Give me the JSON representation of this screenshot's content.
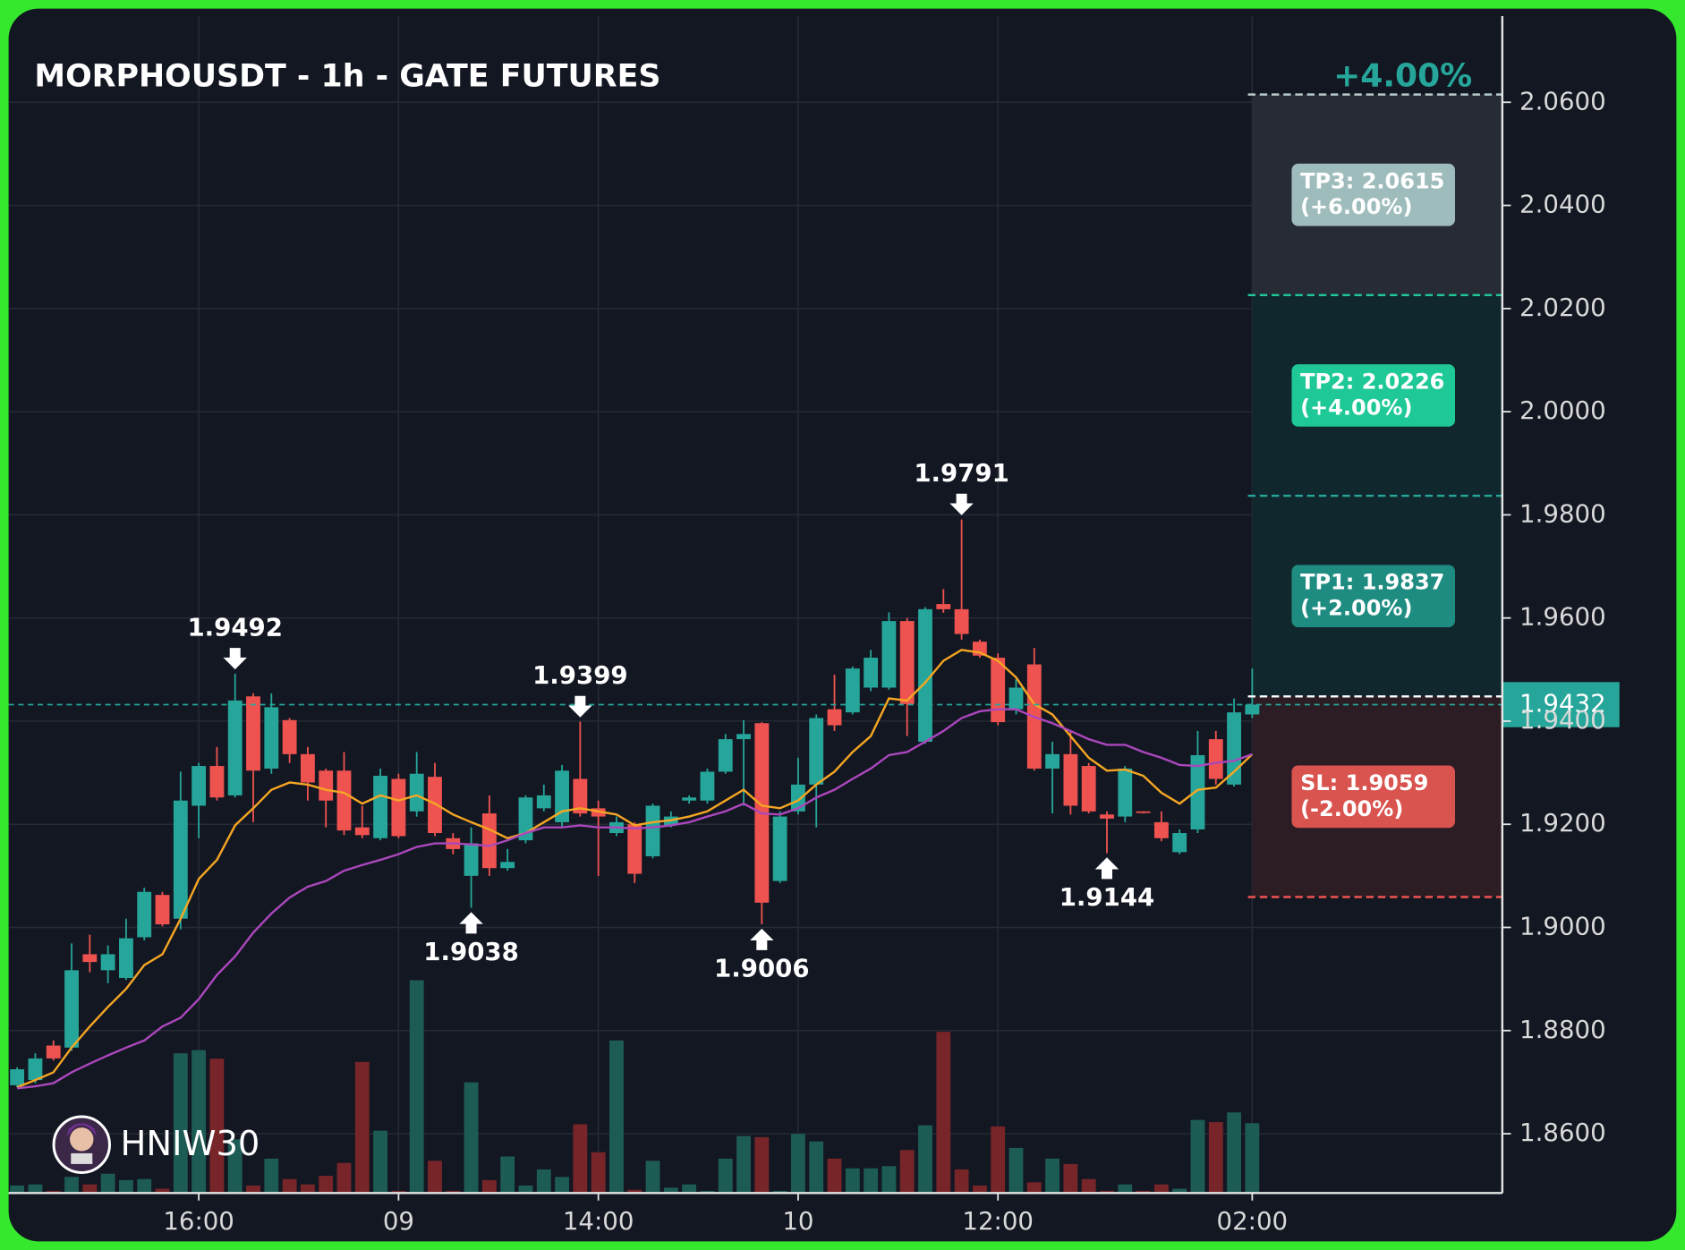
{
  "chart_data": {
    "type": "candlestick",
    "title": "MORPHOUSDT - 1h - GATE FUTURES",
    "badge": "+4.00%",
    "watermark": "HNIW30",
    "xlim": [
      -0.47,
      81.77
    ],
    "ylim": [
      1.8485,
      2.0767
    ],
    "xticks": [
      {
        "value": 10,
        "label": "16:00"
      },
      {
        "value": 21,
        "label": "09"
      },
      {
        "value": 32,
        "label": "14:00"
      },
      {
        "value": 43,
        "label": "10"
      },
      {
        "value": 54,
        "label": "12:00"
      },
      {
        "value": 68,
        "label": "02:00"
      }
    ],
    "yticks": [
      {
        "value": 1.86,
        "label": "1.8600"
      },
      {
        "value": 1.88,
        "label": "1.8800"
      },
      {
        "value": 1.9,
        "label": "1.9000"
      },
      {
        "value": 1.92,
        "label": "1.9200"
      },
      {
        "value": 1.94,
        "label": "1.9400"
      },
      {
        "value": 1.96,
        "label": "1.9600"
      },
      {
        "value": 1.98,
        "label": "1.9800"
      },
      {
        "value": 2.0,
        "label": "2.0000"
      },
      {
        "value": 2.02,
        "label": "2.0200"
      },
      {
        "value": 2.04,
        "label": "2.0400"
      },
      {
        "value": 2.06,
        "label": "2.0600"
      }
    ],
    "grid": true,
    "up_color": "#26a69a",
    "down_color": "#ef5350",
    "volume_up_color": "#1d5c55",
    "volume_down_color": "#772528",
    "open": [
      1.8694,
      1.8704,
      1.8771,
      1.8767,
      1.8948,
      1.8917,
      1.8902,
      1.8981,
      1.9063,
      1.9017,
      1.9236,
      1.9313,
      1.9256,
      1.9448,
      1.9308,
      1.9402,
      1.9336,
      1.9304,
      1.9304,
      1.9194,
      1.9173,
      1.9288,
      1.9225,
      1.9292,
      1.9173,
      1.91,
      1.9221,
      1.9115,
      1.9169,
      1.9231,
      1.9204,
      1.9288,
      1.9231,
      1.9183,
      1.92,
      1.9138,
      1.9198,
      1.9246,
      1.9246,
      1.9302,
      1.9365,
      1.9396,
      1.909,
      1.9225,
      1.9277,
      1.9423,
      1.9417,
      1.9465,
      1.9465,
      1.9594,
      1.936,
      1.9627,
      1.9617,
      1.9554,
      1.9523,
      1.9423,
      1.951,
      1.9308,
      1.9336,
      1.9313,
      1.9219,
      1.9215,
      1.9225,
      1.9204,
      1.9146,
      1.919,
      1.9365,
      1.9277,
      1.9413
    ],
    "high": [
      1.8729,
      1.8756,
      1.8781,
      1.8969,
      1.8986,
      1.8965,
      1.9017,
      1.9077,
      1.9069,
      1.9302,
      1.9319,
      1.935,
      1.9492,
      1.9454,
      1.9454,
      1.9406,
      1.935,
      1.9308,
      1.934,
      1.9236,
      1.9308,
      1.9298,
      1.934,
      1.9319,
      1.9183,
      1.9194,
      1.9256,
      1.9152,
      1.9256,
      1.9277,
      1.9315,
      1.9399,
      1.9246,
      1.9215,
      1.9204,
      1.924,
      1.9225,
      1.9256,
      1.9308,
      1.9375,
      1.9402,
      1.9398,
      1.9225,
      1.9329,
      1.9413,
      1.949,
      1.9506,
      1.9538,
      1.9611,
      1.96,
      1.9621,
      1.9656,
      1.9791,
      1.9558,
      1.9531,
      1.9481,
      1.9542,
      1.936,
      1.9381,
      1.9319,
      1.9225,
      1.9313,
      1.9225,
      1.9225,
      1.919,
      1.9381,
      1.9381,
      1.9444,
      1.9502
    ],
    "low": [
      1.869,
      1.8698,
      1.8742,
      1.8761,
      1.8913,
      1.8892,
      1.8898,
      1.8975,
      1.9002,
      1.8996,
      1.9173,
      1.9246,
      1.9252,
      1.9204,
      1.9298,
      1.9319,
      1.9246,
      1.9194,
      1.9179,
      1.9173,
      1.9169,
      1.9173,
      1.9215,
      1.9177,
      1.9142,
      1.9038,
      1.91,
      1.911,
      1.9163,
      1.9225,
      1.9194,
      1.9215,
      1.91,
      1.9177,
      1.9086,
      1.9134,
      1.9194,
      1.924,
      1.924,
      1.9298,
      1.9236,
      1.9006,
      1.9086,
      1.9219,
      1.9194,
      1.9381,
      1.9413,
      1.9458,
      1.9461,
      1.9371,
      1.9356,
      1.961,
      1.9558,
      1.9523,
      1.9392,
      1.9413,
      1.9304,
      1.9221,
      1.9219,
      1.9221,
      1.9144,
      1.9204,
      1.9221,
      1.9167,
      1.9142,
      1.9183,
      1.9277,
      1.9273,
      1.9406
    ],
    "close": [
      1.8725,
      1.8746,
      1.8746,
      1.8917,
      1.8933,
      1.8948,
      1.8979,
      1.9069,
      1.9006,
      1.9246,
      1.9313,
      1.9252,
      1.944,
      1.9304,
      1.9427,
      1.9336,
      1.9281,
      1.9246,
      1.9188,
      1.9179,
      1.9294,
      1.9177,
      1.9298,
      1.9183,
      1.9152,
      1.9163,
      1.9115,
      1.9127,
      1.9252,
      1.9256,
      1.9304,
      1.9221,
      1.9215,
      1.9204,
      1.9104,
      1.9236,
      1.9215,
      1.9252,
      1.9302,
      1.9365,
      1.9375,
      1.9048,
      1.9215,
      1.9277,
      1.9406,
      1.9392,
      1.9502,
      1.9523,
      1.9594,
      1.9433,
      1.9617,
      1.9617,
      1.9569,
      1.9527,
      1.9398,
      1.9465,
      1.9308,
      1.9336,
      1.9236,
      1.9225,
      1.9211,
      1.9308,
      1.9223,
      1.9173,
      1.9183,
      1.9334,
      1.9288,
      1.9417,
      1.9432
    ],
    "vlim": [
      0,
      200
    ],
    "volume": [
      7,
      8,
      2,
      15,
      8,
      18,
      12,
      13,
      4,
      130,
      133,
      125,
      50,
      7,
      32,
      13,
      8,
      16,
      28,
      122,
      58,
      2,
      198,
      30,
      2,
      103,
      12,
      34,
      7,
      22,
      15,
      64,
      38,
      142,
      3,
      30,
      5,
      8,
      2,
      32,
      53,
      52,
      2,
      55,
      48,
      32,
      23,
      23,
      25,
      40,
      63,
      150,
      22,
      7,
      62,
      42,
      10,
      32,
      27,
      13,
      2,
      8,
      2,
      8,
      4,
      68,
      66,
      75,
      65
    ],
    "series": [
      {
        "color": "#f5a623",
        "values": [
          1.869,
          1.8704,
          1.8719,
          1.8767,
          1.8808,
          1.8846,
          1.8881,
          1.8927,
          1.8948,
          1.9017,
          1.9094,
          1.9131,
          1.9198,
          1.9231,
          1.9267,
          1.9281,
          1.9277,
          1.9267,
          1.9261,
          1.924,
          1.9256,
          1.9246,
          1.9256,
          1.924,
          1.9219,
          1.9204,
          1.919,
          1.9173,
          1.9183,
          1.9204,
          1.9225,
          1.9231,
          1.9225,
          1.9219,
          1.9198,
          1.9204,
          1.9208,
          1.9215,
          1.9225,
          1.9246,
          1.9267,
          1.9236,
          1.9231,
          1.9246,
          1.9277,
          1.9302,
          1.934,
          1.9371,
          1.9444,
          1.944,
          1.9475,
          1.9517,
          1.9538,
          1.9533,
          1.9517,
          1.9485,
          1.9433,
          1.9413,
          1.9371,
          1.9329,
          1.9304,
          1.9306,
          1.9294,
          1.9261,
          1.924,
          1.9267,
          1.9271,
          1.9302,
          1.9336
        ]
      },
      {
        "color": "#ab47bc",
        "values": [
          1.8688,
          1.8692,
          1.8698,
          1.8719,
          1.8736,
          1.8752,
          1.8767,
          1.8781,
          1.8808,
          1.8825,
          1.8861,
          1.8908,
          1.8944,
          1.899,
          1.9027,
          1.9058,
          1.9079,
          1.909,
          1.911,
          1.9121,
          1.9131,
          1.9142,
          1.9156,
          1.9163,
          1.9163,
          1.9161,
          1.9158,
          1.9169,
          1.9183,
          1.9194,
          1.9194,
          1.9198,
          1.9194,
          1.9194,
          1.9192,
          1.9194,
          1.9198,
          1.9204,
          1.9215,
          1.9225,
          1.924,
          1.9221,
          1.9219,
          1.9231,
          1.9252,
          1.9267,
          1.9288,
          1.9308,
          1.9334,
          1.934,
          1.936,
          1.9381,
          1.9406,
          1.9419,
          1.9423,
          1.9423,
          1.9408,
          1.9396,
          1.9381,
          1.9365,
          1.9354,
          1.9354,
          1.934,
          1.9329,
          1.9315,
          1.9313,
          1.9319,
          1.9323,
          1.9336
        ]
      }
    ],
    "annotations": [
      {
        "index": 12,
        "value": 1.9492,
        "kind": "high"
      },
      {
        "index": 25,
        "value": 1.9038,
        "kind": "low"
      },
      {
        "index": 31,
        "value": 1.9399,
        "kind": "high"
      },
      {
        "index": 41,
        "value": 1.9006,
        "kind": "low"
      },
      {
        "index": 52,
        "value": 1.9791,
        "kind": "high"
      },
      {
        "index": 60,
        "value": 1.9144,
        "kind": "low"
      }
    ],
    "last_price": 1.9432,
    "last_color": "#26a69a",
    "entry": 1.9448,
    "entry_color": "#ffffff",
    "setup_start": 68,
    "levels": [
      {
        "value": 2.0615,
        "label": "TP3: 2.0615",
        "change": "(+6.00%)",
        "color": "#b9cccc",
        "box": "#9fbcbc",
        "zone": "#262b34",
        "zone_to": 2.0226
      },
      {
        "value": 2.0226,
        "label": "TP2: 2.0226",
        "change": "(+4.00%)",
        "color": "#20c997",
        "box": "#1fc997",
        "zone": "#10282d",
        "zone_to": 1.9837
      },
      {
        "value": 1.9837,
        "label": "TP1: 1.9837",
        "change": "(+2.00%)",
        "color": "#26a69a",
        "box": "#1f8c82",
        "zone": "#10282d",
        "zone_to": 1.9448
      },
      {
        "value": 1.9059,
        "label": "SL: 1.9059",
        "change": "(-2.00%)",
        "color": "#ef5350",
        "box": "#d9534f",
        "zone": "#2c1d24",
        "zone_to": 1.9448
      }
    ]
  }
}
